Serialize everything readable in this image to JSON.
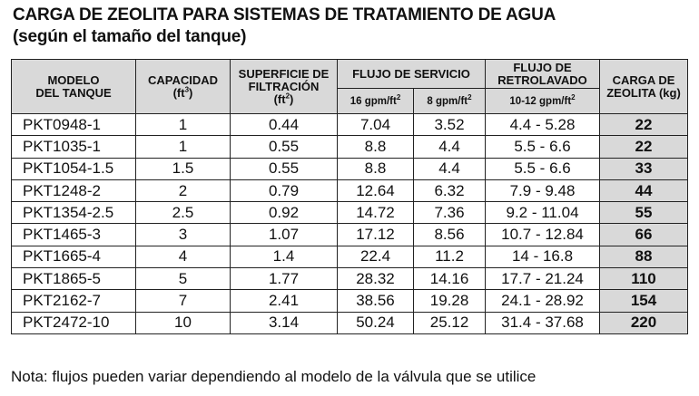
{
  "title": "CARGA DE ZEOLITA PARA SISTEMAS DE TRATAMIENTO DE AGUA",
  "subtitle": "(según el tamaño del tanque)",
  "headers": {
    "modelo_1": "MODELO",
    "modelo_2": "DEL TANQUE",
    "capacidad": "CAPACIDAD",
    "capacidad_unit": "(ft",
    "capacidad_exp": "3",
    "capacidad_close": ")",
    "superficie_1": "SUPERFICIE DE",
    "superficie_2": "FILTRACIÓN",
    "superficie_unit": "(ft",
    "superficie_exp": "2",
    "superficie_close": ")",
    "flujo_servicio": "FLUJO DE SERVICIO",
    "servicio_16": "16 gpm/ft",
    "servicio_16_exp": "2",
    "servicio_8": "8 gpm/ft",
    "servicio_8_exp": "2",
    "retro_1": "FLUJO DE",
    "retro_2": "RETROLAVADO",
    "retro_sub": "10-12 gpm/ft",
    "retro_sub_exp": "2",
    "carga_1": "CARGA DE",
    "carga_2": "ZEOLITA (kg)"
  },
  "rows": [
    {
      "modelo": "PKT0948-1",
      "capacidad": "1",
      "superficie": "0.44",
      "s16": "7.04",
      "s8": "3.52",
      "retro": "4.4 - 5.28",
      "carga": "22"
    },
    {
      "modelo": "PKT1035-1",
      "capacidad": "1",
      "superficie": "0.55",
      "s16": "8.8",
      "s8": "4.4",
      "retro": "5.5 - 6.6",
      "carga": "22"
    },
    {
      "modelo": "PKT1054-1.5",
      "capacidad": "1.5",
      "superficie": "0.55",
      "s16": "8.8",
      "s8": "4.4",
      "retro": "5.5 - 6.6",
      "carga": "33"
    },
    {
      "modelo": "PKT1248-2",
      "capacidad": "2",
      "superficie": "0.79",
      "s16": "12.64",
      "s8": "6.32",
      "retro": "7.9 - 9.48",
      "carga": "44"
    },
    {
      "modelo": "PKT1354-2.5",
      "capacidad": "2.5",
      "superficie": "0.92",
      "s16": "14.72",
      "s8": "7.36",
      "retro": "9.2 - 11.04",
      "carga": "55"
    },
    {
      "modelo": "PKT1465-3",
      "capacidad": "3",
      "superficie": "1.07",
      "s16": "17.12",
      "s8": "8.56",
      "retro": "10.7 - 12.84",
      "carga": "66"
    },
    {
      "modelo": "PKT1665-4",
      "capacidad": "4",
      "superficie": "1.4",
      "s16": "22.4",
      "s8": "11.2",
      "retro": "14 - 16.8",
      "carga": "88"
    },
    {
      "modelo": "PKT1865-5",
      "capacidad": "5",
      "superficie": "1.77",
      "s16": "28.32",
      "s8": "14.16",
      "retro": "17.7 - 21.24",
      "carga": "110"
    },
    {
      "modelo": "PKT2162-7",
      "capacidad": "7",
      "superficie": "2.41",
      "s16": "38.56",
      "s8": "19.28",
      "retro": "24.1 - 28.92",
      "carga": "154"
    },
    {
      "modelo": "PKT2472-10",
      "capacidad": "10",
      "superficie": "3.14",
      "s16": "50.24",
      "s8": "25.12",
      "retro": "31.4 - 37.68",
      "carga": "220"
    }
  ],
  "note": "Nota: flujos pueden variar dependiendo al modelo de la válvula que se utilice",
  "colors": {
    "header_bg": "#d9d9d9",
    "border": "#222222"
  }
}
